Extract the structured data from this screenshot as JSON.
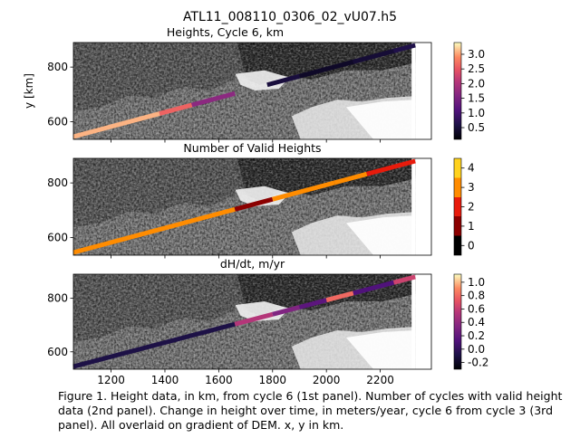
{
  "figure": {
    "suptitle": "ATL11_008110_0306_02_vU07.h5",
    "caption": "Figure 1. Height data, in km, from cycle 6 (1st panel). Number of cycles with valid height data (2nd panel). Change in height over time, in meters/year, cycle 6 from cycle 3 (3rd panel). All overlaid on gradient of DEM. x, y in km."
  },
  "chart_data": [
    {
      "type": "scatter",
      "title": "Heights, Cycle 6, km",
      "ylabel": "y [km]",
      "xlabel": "",
      "xlim": [
        1060,
        2390
      ],
      "ylim": [
        535,
        890
      ],
      "xticks": [
        "",
        "",
        "",
        "",
        "",
        "",
        ""
      ],
      "yticks": [
        "600",
        "800"
      ],
      "track": [
        [
          1060,
          545
        ],
        [
          2330,
          880
        ]
      ],
      "segments": [
        {
          "x0": 1060,
          "x1": 1380,
          "value": 3.1
        },
        {
          "x0": 1380,
          "x1": 1500,
          "value": 2.6
        },
        {
          "x0": 1500,
          "x1": 1660,
          "value": 1.6
        },
        {
          "x0": 1780,
          "x1": 1900,
          "value": 0.5
        },
        {
          "x0": 1900,
          "x1": 2100,
          "value": 0.35
        },
        {
          "x0": 2100,
          "x1": 2250,
          "value": 0.45
        },
        {
          "x0": 2250,
          "x1": 2330,
          "value": 0.6
        }
      ],
      "colorbar": {
        "colormap": "magma",
        "range": [
          0.1,
          3.4
        ],
        "ticks": [
          "0.5",
          "1.0",
          "1.5",
          "2.0",
          "2.5",
          "3.0"
        ]
      }
    },
    {
      "type": "scatter",
      "title": "Number of Valid Heights",
      "ylabel": "",
      "xlabel": "",
      "xlim": [
        1060,
        2390
      ],
      "ylim": [
        535,
        890
      ],
      "xticks": [
        "",
        "",
        "",
        "",
        "",
        "",
        ""
      ],
      "yticks": [
        "600",
        "800"
      ],
      "track": [
        [
          1060,
          545
        ],
        [
          2330,
          880
        ]
      ],
      "segments": [
        {
          "x0": 1060,
          "x1": 1660,
          "value": 3
        },
        {
          "x0": 1660,
          "x1": 1800,
          "value": 1
        },
        {
          "x0": 1800,
          "x1": 2030,
          "value": 3
        },
        {
          "x0": 2030,
          "x1": 2150,
          "value": 3
        },
        {
          "x0": 2150,
          "x1": 2330,
          "value": 2
        }
      ],
      "colorbar": {
        "colormap": "discrete",
        "range": [
          -0.5,
          4.5
        ],
        "ticks": [
          "0",
          "1",
          "2",
          "3",
          "4"
        ]
      }
    },
    {
      "type": "scatter",
      "title": "dH/dt, m/yr",
      "ylabel": "",
      "xlabel": "",
      "xlim": [
        1060,
        2390
      ],
      "ylim": [
        535,
        890
      ],
      "xticks": [
        "1200",
        "1400",
        "1600",
        "1800",
        "2000",
        "2200"
      ],
      "yticks": [
        "600",
        "800"
      ],
      "track": [
        [
          1060,
          545
        ],
        [
          2330,
          880
        ]
      ],
      "segments": [
        {
          "x0": 1060,
          "x1": 1660,
          "value": -0.1
        },
        {
          "x0": 1660,
          "x1": 1800,
          "value": 0.5
        },
        {
          "x0": 1800,
          "x1": 1900,
          "value": 0.3
        },
        {
          "x0": 1900,
          "x1": 2000,
          "value": 0.15
        },
        {
          "x0": 2000,
          "x1": 2100,
          "value": 0.8
        },
        {
          "x0": 2100,
          "x1": 2250,
          "value": 0.1
        },
        {
          "x0": 2250,
          "x1": 2330,
          "value": 0.6
        }
      ],
      "colorbar": {
        "colormap": "magma",
        "range": [
          -0.3,
          1.12
        ],
        "ticks": [
          "-0.2",
          "0.0",
          "0.2",
          "0.4",
          "0.6",
          "0.8",
          "1.0"
        ]
      }
    }
  ]
}
